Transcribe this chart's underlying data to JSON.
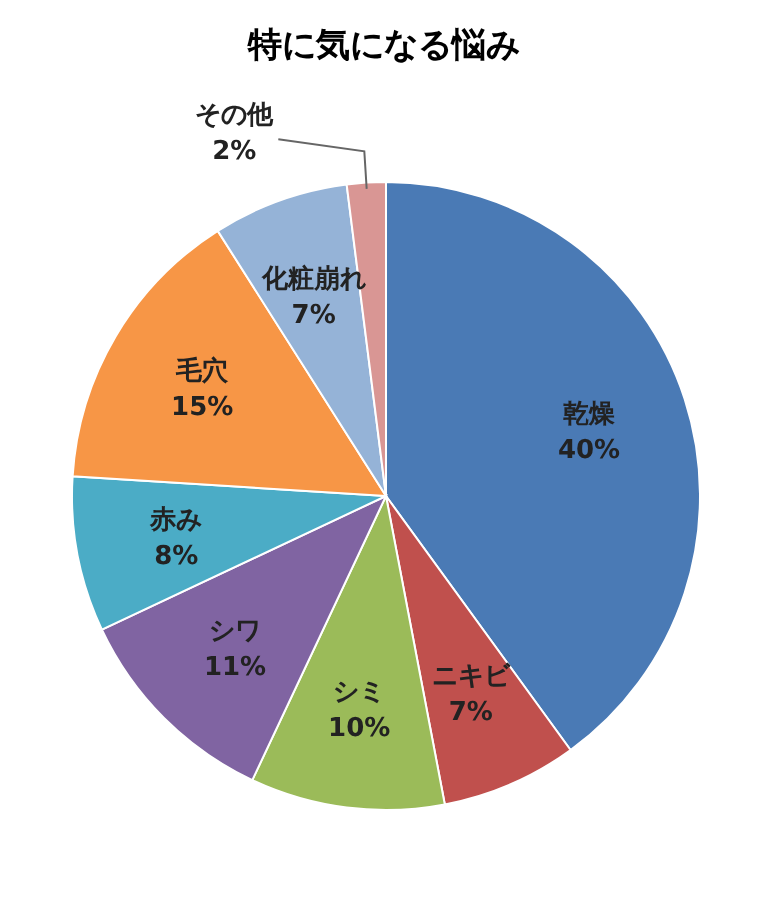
{
  "chart_data": {
    "type": "pie",
    "title": "特に気になる悩み",
    "categories": [
      "乾燥",
      "ニキビ",
      "シミ",
      "シワ",
      "赤み",
      "毛穴",
      "化粧崩れ",
      "その他"
    ],
    "values": [
      40,
      7,
      10,
      11,
      8,
      15,
      7,
      2
    ],
    "value_labels": [
      "40%",
      "7%",
      "10%",
      "11%",
      "8%",
      "15%",
      "7%",
      "2%"
    ],
    "colors": [
      "#4a7ab5",
      "#c0504d",
      "#9bbb59",
      "#8064a2",
      "#4bacc6",
      "#f79646",
      "#95b3d7",
      "#d99694"
    ]
  }
}
